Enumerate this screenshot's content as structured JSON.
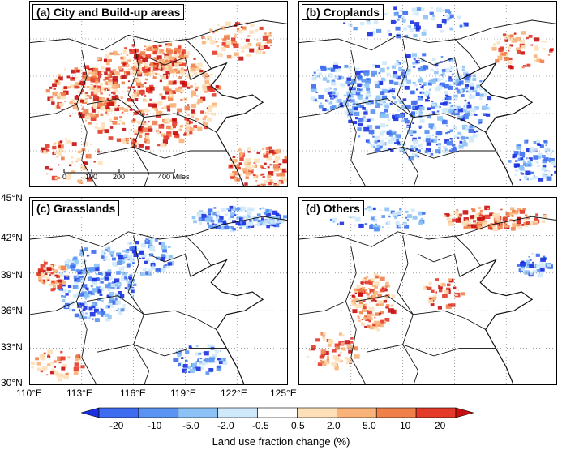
{
  "panels": [
    {
      "id": "a",
      "title": "(a) City and Build-up areas",
      "dominant": "red"
    },
    {
      "id": "b",
      "title": "(b) Croplands",
      "dominant": "blue"
    },
    {
      "id": "c",
      "title": "(c) Grasslands",
      "dominant": "blue-sparse"
    },
    {
      "id": "d",
      "title": "(d) Others",
      "dominant": "mixed-sparse"
    }
  ],
  "north_arrow": {
    "label": "N"
  },
  "scale_bar": {
    "labels": [
      "0",
      "100",
      "200",
      "400 Miles"
    ]
  },
  "axes": {
    "lat_labels": [
      "45°N",
      "42°N",
      "39°N",
      "36°N",
      "33°N",
      "30°N"
    ],
    "lon_labels": [
      "110°E",
      "113°E",
      "116°E",
      "119°E",
      "122°E",
      "125°E"
    ]
  },
  "colorbar": {
    "labels": [
      "-20",
      "-10",
      "-5.0",
      "-2.0",
      "-0.5",
      "0.5",
      "2.0",
      "5.0",
      "10",
      "20"
    ],
    "colors": [
      "#1a2fe0",
      "#3d6cf0",
      "#5a93f2",
      "#8cc2f5",
      "#cfe9fb",
      "#ffffff",
      "#fde0b8",
      "#f9b37a",
      "#f0804a",
      "#e33a2a",
      "#c81010"
    ],
    "title": "Land use fraction change (%)"
  }
}
